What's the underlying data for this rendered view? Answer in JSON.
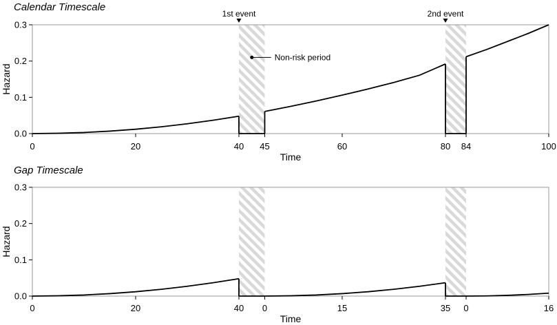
{
  "chart_data": [
    {
      "type": "line",
      "title": "Calendar Timescale",
      "xlabel": "Time",
      "ylabel": "Hazard",
      "xlim": [
        0,
        100
      ],
      "ylim": [
        0,
        0.3
      ],
      "yticks": [
        "0.0",
        "0.1",
        "0.2",
        "0.3"
      ],
      "xticks": [
        {
          "pos": 0,
          "label": "0"
        },
        {
          "pos": 20,
          "label": "20"
        },
        {
          "pos": 40,
          "label": "40"
        },
        {
          "pos": 45,
          "label": "45"
        },
        {
          "pos": 60,
          "label": "60"
        },
        {
          "pos": 80,
          "label": "80"
        },
        {
          "pos": 84,
          "label": "84"
        },
        {
          "pos": 100,
          "label": "100"
        }
      ],
      "nonrisk_periods": [
        [
          40,
          45
        ],
        [
          80,
          84
        ]
      ],
      "events": [
        {
          "x": 40,
          "label": "1st event"
        },
        {
          "x": 80,
          "label": "2nd event"
        }
      ],
      "annotation": {
        "x": 42.5,
        "y": 0.21,
        "label": "Non-risk period"
      },
      "series": [
        {
          "segments": [
            {
              "x": [
                0,
                5,
                10,
                15,
                20,
                25,
                30,
                35,
                40
              ],
              "y": [
                0,
                0.0008,
                0.003,
                0.0068,
                0.012,
                0.0188,
                0.027,
                0.0368,
                0.048
              ]
            },
            {
              "x": [
                40,
                40
              ],
              "y": [
                0.048,
                0
              ]
            },
            {
              "x": [
                40,
                45
              ],
              "y": [
                0,
                0
              ]
            },
            {
              "x": [
                45,
                45
              ],
              "y": [
                0,
                0.061
              ]
            },
            {
              "x": [
                45,
                50,
                55,
                60,
                65,
                70,
                75,
                80
              ],
              "y": [
                0.061,
                0.075,
                0.09,
                0.106,
                0.123,
                0.141,
                0.161,
                0.192
              ]
            },
            {
              "x": [
                80,
                80
              ],
              "y": [
                0.192,
                0
              ]
            },
            {
              "x": [
                80,
                84
              ],
              "y": [
                0,
                0
              ]
            },
            {
              "x": [
                84,
                84
              ],
              "y": [
                0,
                0.212
              ]
            },
            {
              "x": [
                84,
                88,
                92,
                96,
                100
              ],
              "y": [
                0.212,
                0.232,
                0.254,
                0.276,
                0.3
              ]
            }
          ]
        }
      ]
    },
    {
      "type": "line",
      "title": "Gap Timescale",
      "xlabel": "Time",
      "ylabel": "Hazard",
      "xlim": [
        0,
        100
      ],
      "ylim": [
        0,
        0.3
      ],
      "yticks": [
        "0.0",
        "0.1",
        "0.2",
        "0.3"
      ],
      "xticks": [
        {
          "pos": 0,
          "label": "0"
        },
        {
          "pos": 20,
          "label": "20"
        },
        {
          "pos": 40,
          "label": "40"
        },
        {
          "pos": 45,
          "label": "0"
        },
        {
          "pos": 60,
          "label": "15"
        },
        {
          "pos": 80,
          "label": "35"
        },
        {
          "pos": 84,
          "label": "0"
        },
        {
          "pos": 100,
          "label": "16"
        }
      ],
      "nonrisk_periods": [
        [
          40,
          45
        ],
        [
          80,
          84
        ]
      ],
      "series": [
        {
          "segments": [
            {
              "x": [
                0,
                5,
                10,
                15,
                20,
                25,
                30,
                35,
                40
              ],
              "y": [
                0,
                0.0008,
                0.003,
                0.0068,
                0.012,
                0.0188,
                0.027,
                0.0368,
                0.048
              ]
            },
            {
              "x": [
                40,
                40
              ],
              "y": [
                0.048,
                0
              ]
            },
            {
              "x": [
                40,
                45
              ],
              "y": [
                0,
                0
              ]
            },
            {
              "x": [
                45,
                50,
                55,
                60,
                65,
                70,
                75,
                80
              ],
              "y": [
                0,
                0.0008,
                0.003,
                0.0068,
                0.012,
                0.0188,
                0.027,
                0.0368
              ]
            },
            {
              "x": [
                80,
                80
              ],
              "y": [
                0.0368,
                0
              ]
            },
            {
              "x": [
                80,
                84
              ],
              "y": [
                0,
                0
              ]
            },
            {
              "x": [
                84,
                88,
                92,
                96,
                100
              ],
              "y": [
                0,
                0.0005,
                0.002,
                0.0045,
                0.008
              ]
            }
          ]
        }
      ]
    }
  ]
}
